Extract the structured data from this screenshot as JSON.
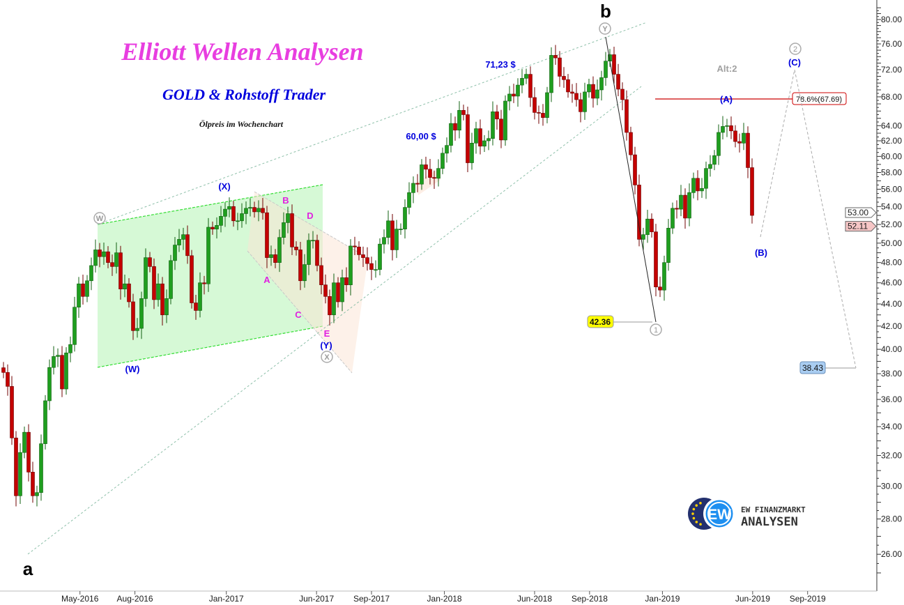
{
  "header": {
    "title": "Elliott Wellen Analysen",
    "subtitle": "GOLD & Rohstoff Trader",
    "caption": "Ölpreis im Wochenchart"
  },
  "logo": {
    "badge": "EW",
    "line1": "EW FINANZMARKT",
    "line2": "ANALYSEN"
  },
  "colors": {
    "up": "#1f9e1f",
    "down": "#c40000",
    "title": "#e83ee0",
    "subtitle": "#0000dd",
    "fib": "#cc0000"
  },
  "chart_data": {
    "type": "candlestick",
    "title": "Ölpreis im Wochenchart",
    "y_scale": "log",
    "ylim": [
      24.5,
      82
    ],
    "grid": false,
    "y_ticks": [
      80,
      76,
      72,
      68,
      64,
      62,
      60,
      58,
      56,
      54,
      52,
      50,
      48,
      46,
      44,
      42,
      40,
      38,
      36,
      34,
      32,
      30,
      28,
      26
    ],
    "y_tick_labels": [
      "80.00",
      "76.00",
      "72.00",
      "68.00",
      "64.00",
      "62.00",
      "60.00",
      "58.00",
      "56.00",
      "54.00",
      "52.00",
      "50.00",
      "48.00",
      "46.00",
      "44.00",
      "42.00",
      "40.00",
      "38.00",
      "36.00",
      "34.00",
      "32.00",
      "30.00",
      "28.00",
      "26.00"
    ],
    "x_tick_labels": [
      "May-2016",
      "Aug-2016",
      "Jan-2017",
      "Jun-2017",
      "Sep-2017",
      "Jan-2018",
      "Jun-2018",
      "Sep-2018",
      "Jan-2019",
      "Jun-2019",
      "Sep-2019"
    ],
    "x_tick_dates": [
      "2016-05-01",
      "2016-08-01",
      "2017-01-01",
      "2017-06-01",
      "2017-09-01",
      "2018-01-01",
      "2018-06-01",
      "2018-09-01",
      "2019-01-01",
      "2019-06-01",
      "2019-09-01"
    ],
    "first_week": "2015-12-25",
    "weekly_close": [
      38.1,
      37.0,
      33.2,
      29.4,
      32.2,
      33.6,
      30.9,
      29.4,
      29.6,
      32.8,
      35.9,
      38.5,
      39.4,
      39.5,
      36.8,
      39.7,
      40.4,
      43.7,
      45.9,
      44.7,
      46.2,
      47.7,
      49.3,
      48.6,
      49.1,
      48.0,
      47.6,
      49.0,
      45.4,
      45.9,
      44.2,
      41.6,
      41.8,
      44.5,
      48.5,
      47.6,
      44.4,
      45.9,
      43.0,
      44.5,
      48.2,
      49.8,
      50.4,
      50.9,
      48.7,
      44.1,
      43.4,
      46.0,
      45.9,
      51.7,
      51.5,
      51.9,
      52.9,
      53.7,
      54.0,
      52.4,
      52.4,
      53.2,
      53.8,
      53.9,
      53.4,
      53.8,
      53.3,
      48.5,
      48.8,
      48.0,
      50.6,
      52.2,
      53.2,
      49.6,
      49.3,
      46.2,
      47.8,
      50.3,
      50.3,
      47.7,
      45.8,
      44.7,
      43.0,
      46.0,
      44.2,
      46.5,
      45.8,
      49.7,
      49.6,
      48.8,
      48.5,
      47.9,
      47.3,
      47.3,
      49.9,
      50.6,
      52.4,
      49.3,
      51.5,
      51.5,
      53.9,
      55.6,
      56.7,
      56.6,
      58.95,
      58.4,
      57.4,
      57.3,
      58.5,
      60.4,
      61.4,
      64.3,
      63.4,
      66.1,
      65.5,
      59.2,
      61.7,
      63.6,
      61.3,
      62.0,
      62.3,
      65.9,
      64.9,
      62.1,
      67.4,
      68.4,
      68.1,
      69.7,
      70.7,
      71.3,
      67.9,
      65.8,
      65.7,
      65.1,
      68.6,
      74.2,
      73.8,
      71.0,
      70.5,
      68.7,
      68.5,
      67.6,
      65.9,
      68.7,
      69.8,
      67.8,
      69.0,
      70.8,
      73.3,
      74.3,
      71.3,
      69.1,
      67.6,
      63.1,
      60.2,
      56.5,
      50.4,
      50.9,
      52.6,
      51.2,
      45.6,
      45.3,
      48.0,
      51.6,
      53.8,
      53.7,
      55.3,
      52.7,
      55.6,
      57.3,
      55.8,
      56.1,
      58.5,
      59.0,
      60.1,
      63.1,
      63.9,
      64.0,
      63.3,
      61.9,
      61.7,
      63.0,
      58.6,
      53.0
    ],
    "price_tags": [
      {
        "label": "53.00",
        "value": 53.0
      },
      {
        "label": "52.11",
        "value": 52.11
      }
    ],
    "annotations": {
      "primary": {
        "a": "a",
        "b": "b"
      },
      "circled": {
        "W": "W",
        "X": "X",
        "Y": "Y",
        "one": "1",
        "two": "2"
      },
      "blue": {
        "X": "(X)",
        "W": "(W)",
        "Y": "(Y)",
        "A": "(A)",
        "B": "(B)",
        "C": "(C)"
      },
      "triangle": {
        "A": "A",
        "B": "B",
        "C": "C",
        "D": "D",
        "E": "E"
      },
      "price_notes": {
        "p7123": "71,23 $",
        "p6000": "60,00 $"
      },
      "alt": "Alt:2",
      "fib_label": "78.6%(67.69)",
      "fib_value": 67.69,
      "low_label": "42.36",
      "target_label": "38.43"
    }
  }
}
